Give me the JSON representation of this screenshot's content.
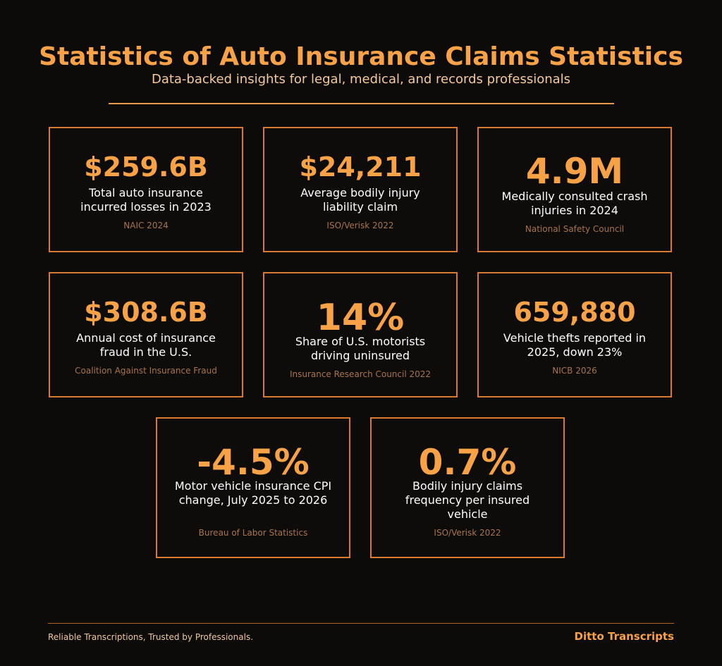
{
  "header": {
    "title": "Statistics of Auto Insurance Claims Statistics",
    "subtitle": "Data-backed insights for legal, medical, and records professionals"
  },
  "cards": [
    {
      "value": "$259.6B",
      "label": "Total auto insurance incurred losses in 2023",
      "source": "NAIC 2024"
    },
    {
      "value": "$24,211",
      "label": "Average bodily injury liability claim",
      "source": "ISO/Verisk 2022"
    },
    {
      "value": "4.9M",
      "label": "Medically consulted crash injuries in 2024",
      "source": "National Safety Council"
    },
    {
      "value": "$308.6B",
      "label": "Annual cost of insurance fraud in the U.S.",
      "source": "Coalition Against Insurance Fraud"
    },
    {
      "value": "14%",
      "label": "Share of U.S. motorists driving uninsured",
      "source": "Insurance Research Council 2022"
    },
    {
      "value": "659,880",
      "label": "Vehicle thefts reported in 2025, down 23%",
      "source": "NICB 2026"
    },
    {
      "value": "-4.5%",
      "label": "Motor vehicle insurance CPI change, July 2025 to 2026",
      "source": "Bureau of Labor Statistics"
    },
    {
      "value": "0.7%",
      "label": "Bodily injury claims frequency per insured vehicle",
      "source": "ISO/Verisk 2022"
    }
  ],
  "footer": {
    "tagline": "Reliable Transcriptions, Trusted by Professionals.",
    "brand": "Ditto Transcripts"
  },
  "colors": {
    "background": "#0d0b0a",
    "accent": "#f7a247",
    "border": "#d97a2e",
    "source_text": "#a8744a"
  }
}
